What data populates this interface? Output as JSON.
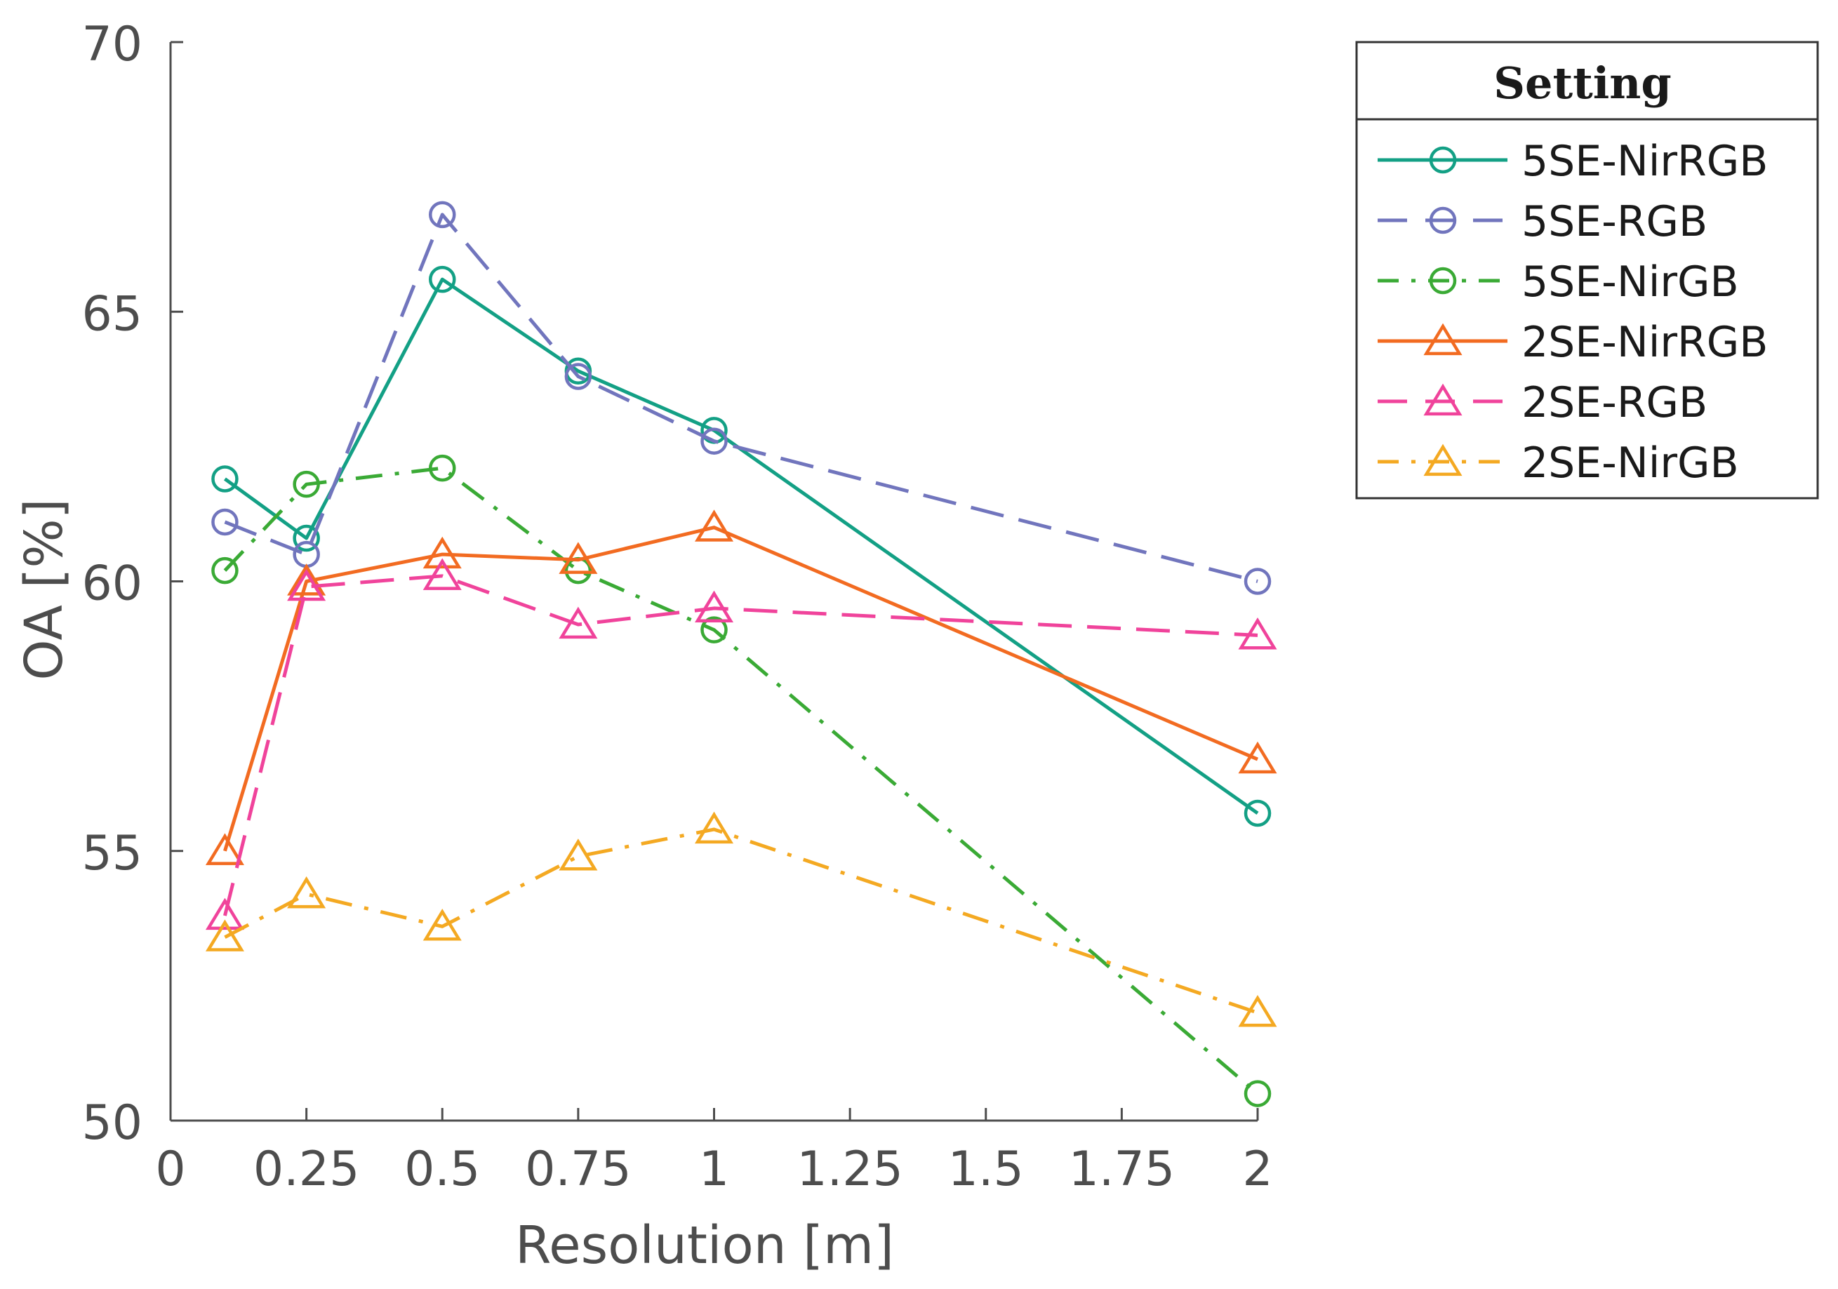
{
  "chart_data": {
    "type": "line",
    "title": "",
    "xlabel": "Resolution [m]",
    "ylabel": "OA [%]",
    "xlim": [
      0,
      2
    ],
    "ylim": [
      50,
      70
    ],
    "xticks": [
      0,
      0.25,
      0.5,
      0.75,
      1,
      1.25,
      1.5,
      1.75,
      2
    ],
    "xtick_labels": [
      "0",
      "0.25",
      "0.5",
      "0.75",
      "1",
      "1.25",
      "1.5",
      "1.75",
      "2"
    ],
    "yticks": [
      50,
      55,
      60,
      65,
      70
    ],
    "ytick_labels": [
      "50",
      "55",
      "60",
      "65",
      "70"
    ],
    "grid": false,
    "legend": {
      "title": "Setting",
      "placement": "outside-right-top"
    },
    "x": [
      0.1,
      0.25,
      0.5,
      0.75,
      1,
      2
    ],
    "series": [
      {
        "name": "5SE-NirRGB",
        "values": [
          61.9,
          60.8,
          65.6,
          63.9,
          62.8,
          55.7
        ],
        "color": "#13a085",
        "dash": "solid",
        "marker": "circle"
      },
      {
        "name": "5SE-RGB",
        "values": [
          61.1,
          60.5,
          66.8,
          63.8,
          62.6,
          60.0
        ],
        "color": "#7175bd",
        "dash": "dashed",
        "marker": "circle"
      },
      {
        "name": "5SE-NirGB",
        "values": [
          60.2,
          61.8,
          62.1,
          60.2,
          59.1,
          50.5
        ],
        "color": "#3aaa35",
        "dash": "dashdot",
        "marker": "circle"
      },
      {
        "name": "2SE-NirRGB",
        "values": [
          55.0,
          60.0,
          60.5,
          60.4,
          61.0,
          56.7
        ],
        "color": "#f26b21",
        "dash": "solid",
        "marker": "triangle"
      },
      {
        "name": "2SE-RGB",
        "values": [
          53.8,
          59.9,
          60.1,
          59.2,
          59.5,
          59.0
        ],
        "color": "#f0439b",
        "dash": "dashed",
        "marker": "triangle"
      },
      {
        "name": "2SE-NirGB",
        "values": [
          53.4,
          54.2,
          53.6,
          54.9,
          55.4,
          52.0
        ],
        "color": "#f4a922",
        "dash": "dashdot",
        "marker": "triangle"
      }
    ]
  }
}
